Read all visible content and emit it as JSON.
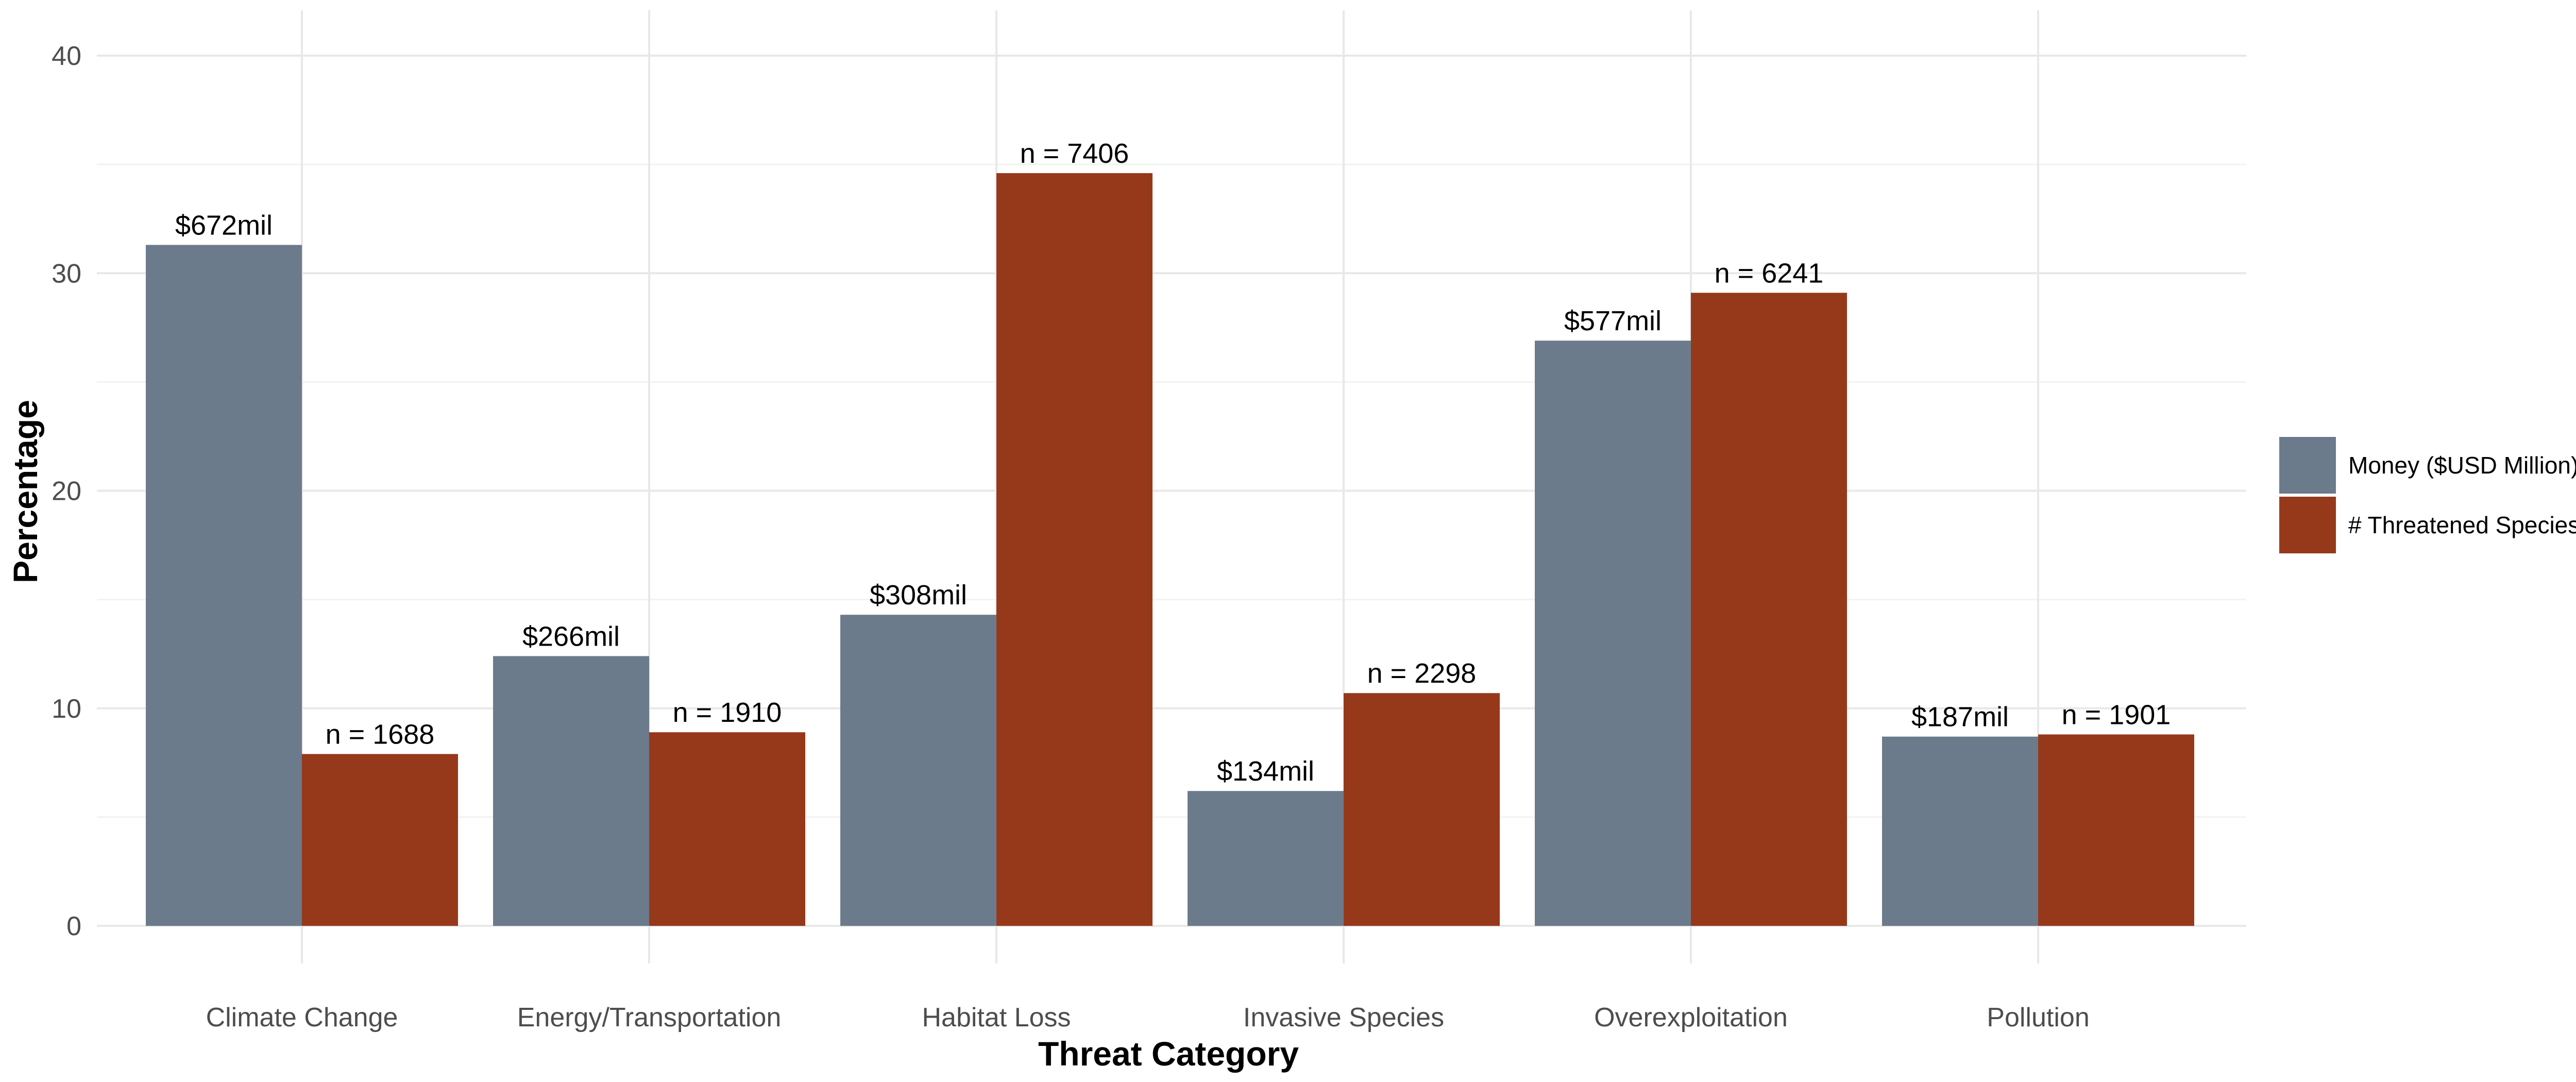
{
  "chart_data": {
    "type": "bar",
    "title": "",
    "xlabel": "Threat Category",
    "ylabel": "Percentage",
    "ylim": [
      0,
      40
    ],
    "yticks": [
      0,
      10,
      20,
      30,
      40
    ],
    "grid": true,
    "legend_position": "right",
    "categories": [
      "Climate Change",
      "Energy/Transportation",
      "Habitat Loss",
      "Invasive Species",
      "Overexploitation",
      "Pollution"
    ],
    "series": [
      {
        "name": "Money ($USD Million)",
        "color": "#6b7b8c",
        "values": [
          31.3,
          12.4,
          14.3,
          6.2,
          26.9,
          8.7
        ],
        "labels": [
          "$672mil",
          "$266mil",
          "$308mil",
          "$134mil",
          "$577mil",
          "$187mil"
        ]
      },
      {
        "name": "# Threatened Species",
        "color": "#96391b",
        "values": [
          7.9,
          8.9,
          34.6,
          10.7,
          29.1,
          8.8
        ],
        "labels": [
          "n = 1688",
          "n = 1910",
          "n = 7406",
          "n = 2298",
          "n = 6241",
          "n = 1901"
        ]
      }
    ]
  }
}
